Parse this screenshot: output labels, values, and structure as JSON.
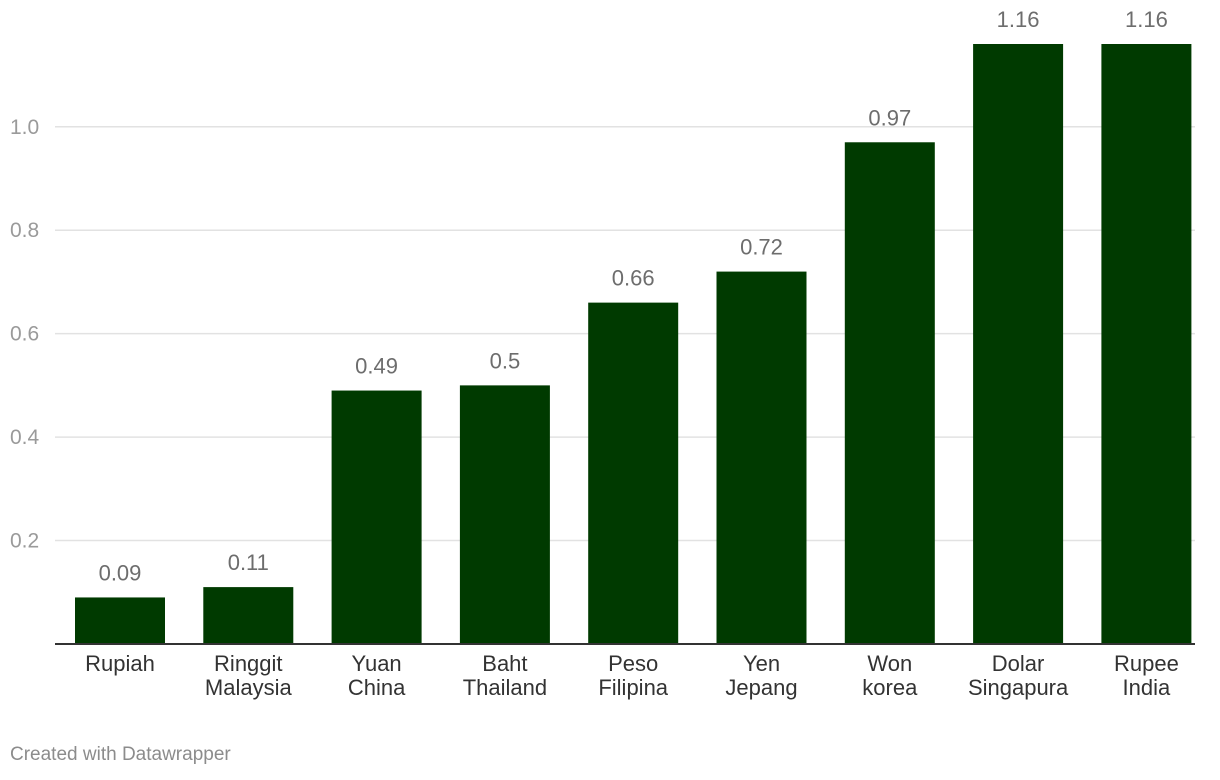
{
  "chart_data": {
    "type": "bar",
    "categories": [
      [
        "Rupiah"
      ],
      [
        "Ringgit",
        "Malaysia"
      ],
      [
        "Yuan",
        "China"
      ],
      [
        "Baht",
        "Thailand"
      ],
      [
        "Peso",
        "Filipina"
      ],
      [
        "Yen",
        "Jepang"
      ],
      [
        "Won",
        "korea"
      ],
      [
        "Dolar",
        "Singapura"
      ],
      [
        "Rupee",
        "India"
      ]
    ],
    "values": [
      0.09,
      0.11,
      0.49,
      0.5,
      0.66,
      0.72,
      0.97,
      1.16,
      1.16
    ],
    "value_labels": [
      "0.09",
      "0.11",
      "0.49",
      "0.5",
      "0.66",
      "0.72",
      "0.97",
      "1.16",
      "1.16"
    ],
    "yticks": [
      0.2,
      0.4,
      0.6,
      0.8,
      1.0
    ],
    "ytick_labels": [
      "0.2",
      "0.4",
      "0.6",
      "0.8",
      "1.0"
    ],
    "ylim": [
      0,
      1.16
    ],
    "grid": true,
    "bar_color": "#003a00"
  },
  "footer": {
    "credit": "Created with Datawrapper"
  }
}
